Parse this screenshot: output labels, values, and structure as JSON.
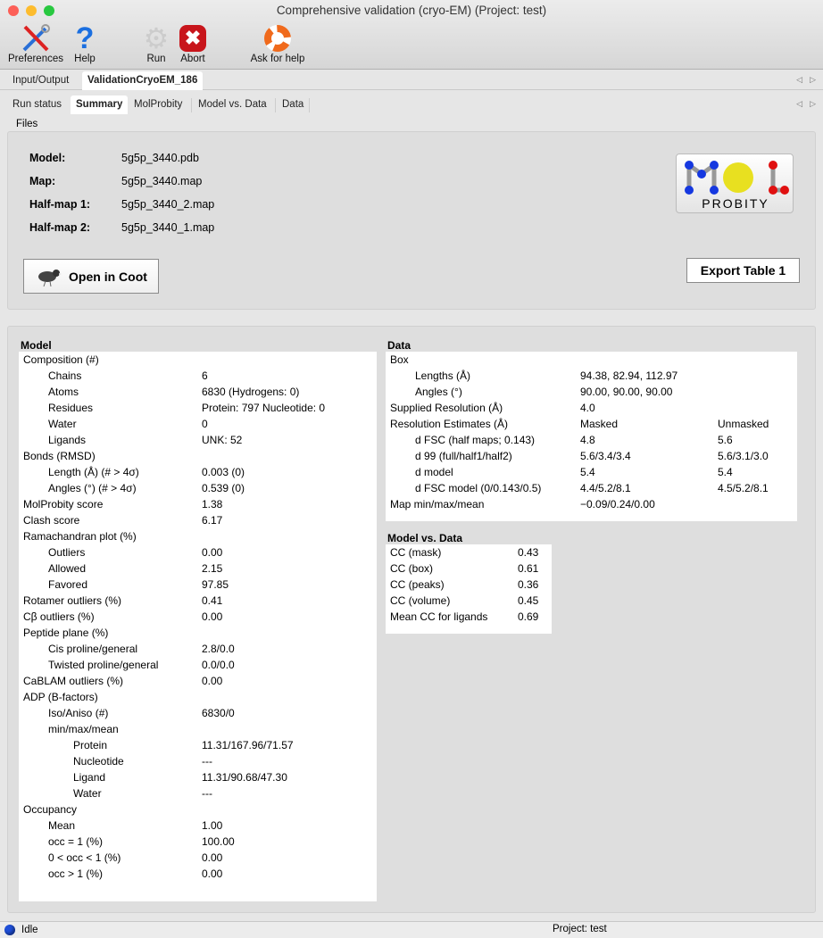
{
  "window": {
    "title": "Comprehensive validation (cryo-EM) (Project: test)"
  },
  "toolbar": {
    "preferences": "Preferences",
    "help": "Help",
    "run": "Run",
    "abort": "Abort",
    "ask": "Ask for help"
  },
  "tabs_outer": [
    "Input/Output",
    "ValidationCryoEM_186"
  ],
  "tabs_inner": [
    "Run status",
    "Summary",
    "MolProbity",
    "Model vs. Data",
    "Data"
  ],
  "files": {
    "section": "Files",
    "items": [
      {
        "label": "Model:",
        "value": "5g5p_3440.pdb"
      },
      {
        "label": "Map:",
        "value": "5g5p_3440.map"
      },
      {
        "label": "Half-map 1:",
        "value": "5g5p_3440_2.map"
      },
      {
        "label": "Half-map 2:",
        "value": "5g5p_3440_1.map"
      }
    ],
    "open_coot": "Open in Coot",
    "export": "Export Table 1",
    "logo_text": "PROBITY"
  },
  "model": {
    "title": "Model",
    "rows": [
      [
        "Composition (#)",
        "",
        0
      ],
      [
        "Chains",
        "6",
        1
      ],
      [
        "Atoms",
        "6830 (Hydrogens: 0)",
        1
      ],
      [
        "Residues",
        "Protein: 797 Nucleotide: 0",
        1
      ],
      [
        "Water",
        "0",
        1
      ],
      [
        "Ligands",
        "UNK: 52",
        1
      ],
      [
        "Bonds (RMSD)",
        "",
        0
      ],
      [
        "Length (Å) (# > 4σ)",
        "0.003 (0)",
        1
      ],
      [
        "Angles (°) (# > 4σ)",
        "0.539 (0)",
        1
      ],
      [
        "MolProbity score",
        "1.38",
        0
      ],
      [
        "Clash score",
        "6.17",
        0
      ],
      [
        "Ramachandran plot (%)",
        "",
        0
      ],
      [
        "Outliers",
        "0.00",
        1
      ],
      [
        "Allowed",
        "2.15",
        1
      ],
      [
        "Favored",
        "97.85",
        1
      ],
      [
        "Rotamer outliers (%)",
        "0.41",
        0
      ],
      [
        "Cβ outliers (%)",
        "0.00",
        0
      ],
      [
        "Peptide plane (%)",
        "",
        0
      ],
      [
        "Cis proline/general",
        "2.8/0.0",
        1
      ],
      [
        "Twisted proline/general",
        "0.0/0.0",
        1
      ],
      [
        "CaBLAM outliers (%)",
        "0.00",
        0
      ],
      [
        "ADP (B-factors)",
        "",
        0
      ],
      [
        "Iso/Aniso (#)",
        "6830/0",
        1
      ],
      [
        "min/max/mean",
        "",
        1
      ],
      [
        "Protein",
        "11.31/167.96/71.57",
        2
      ],
      [
        "Nucleotide",
        "---",
        2
      ],
      [
        "Ligand",
        "11.31/90.68/47.30",
        2
      ],
      [
        "Water",
        "---",
        2
      ],
      [
        "Occupancy",
        "",
        0
      ],
      [
        "Mean",
        "1.00",
        1
      ],
      [
        "occ = 1 (%)",
        "100.00",
        1
      ],
      [
        "0 < occ < 1 (%)",
        "0.00",
        1
      ],
      [
        "occ > 1 (%)",
        "0.00",
        1
      ]
    ]
  },
  "data": {
    "title": "Data",
    "rows": [
      [
        "Box",
        "",
        "",
        0
      ],
      [
        "Lengths (Å)",
        "94.38, 82.94, 112.97",
        "",
        1
      ],
      [
        "Angles (°)",
        "90.00, 90.00, 90.00",
        "",
        1
      ],
      [
        "Supplied Resolution (Å)",
        "4.0",
        "",
        0
      ],
      [
        "Resolution Estimates (Å)",
        "Masked",
        "Unmasked",
        0
      ],
      [
        "d FSC (half maps; 0.143)",
        "4.8",
        "5.6",
        1
      ],
      [
        "d 99 (full/half1/half2)",
        "5.6/3.4/3.4",
        "5.6/3.1/3.0",
        1
      ],
      [
        "d model",
        "5.4",
        "5.4",
        1
      ],
      [
        "d FSC model (0/0.143/0.5)",
        "4.4/5.2/8.1",
        "4.5/5.2/8.1",
        1
      ],
      [
        "Map min/max/mean",
        "−0.09/0.24/0.00",
        "",
        0
      ]
    ]
  },
  "model_vs_data": {
    "title": "Model vs. Data",
    "rows": [
      [
        "CC (mask)",
        "0.43"
      ],
      [
        "CC (box)",
        "0.61"
      ],
      [
        "CC (peaks)",
        "0.36"
      ],
      [
        "CC (volume)",
        "0.45"
      ],
      [
        "Mean CC for ligands",
        "0.69"
      ]
    ]
  },
  "status": {
    "state": "Idle",
    "project": "Project: test",
    "indicator_color": "#1f4fd8"
  }
}
